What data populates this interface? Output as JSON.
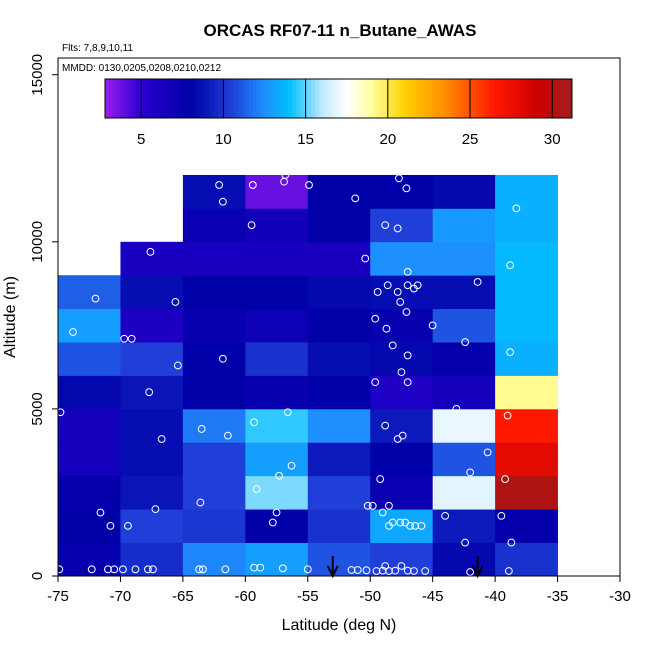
{
  "chart_data": {
    "type": "heatmap",
    "title": "ORCAS RF07-11 n_Butane_AWAS",
    "subtitle_flights": "Flts: 7,8,9,10,11",
    "subtitle_dates": "MMDD: 0130,0205,0208,0210,0212",
    "xlabel": "Latitude (deg N)",
    "ylabel": "Altitude (m)",
    "xlim": [
      -75,
      -30
    ],
    "ylim": [
      0,
      15500
    ],
    "xticks": [
      -75,
      -70,
      -65,
      -60,
      -55,
      -50,
      -45,
      -40,
      -35,
      -30
    ],
    "yticks": [
      0,
      5000,
      10000,
      15000
    ],
    "colorbar": {
      "min": 2.8,
      "max": 31.2,
      "ticks": [
        5,
        10,
        15,
        20,
        25,
        30
      ],
      "stops": [
        {
          "v": 2.8,
          "c": "#9a1ff0"
        },
        {
          "v": 5,
          "c": "#2a00d0"
        },
        {
          "v": 8,
          "c": "#0000a8"
        },
        {
          "v": 10.5,
          "c": "#1f3fd8"
        },
        {
          "v": 12.5,
          "c": "#1e8fff"
        },
        {
          "v": 14,
          "c": "#00bfff"
        },
        {
          "v": 16,
          "c": "#bfe8ff"
        },
        {
          "v": 17.5,
          "c": "#ffffff"
        },
        {
          "v": 19,
          "c": "#ffffa0"
        },
        {
          "v": 21,
          "c": "#ffd200"
        },
        {
          "v": 23.5,
          "c": "#ff8c00"
        },
        {
          "v": 26.5,
          "c": "#ff1800"
        },
        {
          "v": 29,
          "c": "#d00000"
        },
        {
          "v": 31.2,
          "c": "#a01e1e"
        }
      ]
    },
    "lat_bins": [
      -75,
      -70,
      -65,
      -60,
      -55,
      -50,
      -45,
      -40,
      -35
    ],
    "alt_bins": [
      0,
      1000,
      2000,
      3000,
      4000,
      5000,
      6000,
      7000,
      8000,
      9000,
      10000,
      11000,
      12000
    ],
    "cells": [
      [
        7.5,
        9.8,
        12.3,
        13.0,
        11.0,
        10.5,
        8.3,
        10.0
      ],
      [
        8.0,
        10.5,
        10.2,
        8.0,
        10.0,
        13.3,
        9.0,
        7.8
      ],
      [
        7.8,
        8.8,
        10.5,
        15.3,
        10.5,
        7.3,
        16.8,
        30.5
      ],
      [
        6.5,
        8.5,
        10.5,
        13.0,
        9.0,
        8.0,
        11.0,
        28.0
      ],
      [
        6.5,
        8.5,
        12.0,
        14.5,
        12.5,
        9.0,
        17.0,
        26.5
      ],
      [
        8.3,
        8.8,
        8.0,
        7.5,
        8.0,
        5.8,
        6.5,
        19.2
      ],
      [
        11.0,
        10.5,
        8.0,
        10.0,
        8.5,
        8.3,
        7.8,
        13.5
      ],
      [
        13.0,
        6.0,
        7.5,
        7.0,
        8.0,
        7.5,
        11.0,
        13.8
      ],
      [
        11.3,
        8.5,
        8.0,
        8.0,
        8.3,
        8.5,
        8.5,
        13.8
      ],
      [
        null,
        6.2,
        6.2,
        6.2,
        6.2,
        12.5,
        12.5,
        13.8
      ],
      [
        null,
        null,
        7.3,
        6.8,
        8.0,
        10.5,
        12.8,
        13.5
      ],
      [
        null,
        null,
        8.5,
        3.8,
        8.0,
        8.0,
        8.3,
        13.5
      ]
    ],
    "samples": [
      [
        -74.9,
        200
      ],
      [
        -72.3,
        200
      ],
      [
        -71.0,
        200
      ],
      [
        -70.5,
        200
      ],
      [
        -69.8,
        200
      ],
      [
        -68.8,
        200
      ],
      [
        -67.8,
        200
      ],
      [
        -67.4,
        200
      ],
      [
        -63.7,
        200
      ],
      [
        -63.4,
        200
      ],
      [
        -61.6,
        200
      ],
      [
        -59.3,
        250
      ],
      [
        -58.8,
        250
      ],
      [
        -57.0,
        230
      ],
      [
        -55.0,
        200
      ],
      [
        -51.5,
        180
      ],
      [
        -51.0,
        180
      ],
      [
        -50.3,
        170
      ],
      [
        -49.5,
        150
      ],
      [
        -49.0,
        160
      ],
      [
        -48.8,
        300
      ],
      [
        -48.5,
        150
      ],
      [
        -48.0,
        160
      ],
      [
        -47.5,
        300
      ],
      [
        -47.0,
        160
      ],
      [
        -46.5,
        150
      ],
      [
        -45.6,
        150
      ],
      [
        -42.0,
        120
      ],
      [
        -38.9,
        150
      ],
      [
        -71.6,
        1900
      ],
      [
        -70.8,
        1500
      ],
      [
        -69.4,
        1500
      ],
      [
        -67.2,
        2000
      ],
      [
        -63.6,
        2200
      ],
      [
        -57.8,
        1600
      ],
      [
        -57.5,
        1900
      ],
      [
        -50.2,
        2100
      ],
      [
        -49.8,
        2100
      ],
      [
        -49.0,
        1900
      ],
      [
        -48.5,
        1500
      ],
      [
        -48.2,
        1600
      ],
      [
        -47.6,
        1600
      ],
      [
        -47.2,
        1600
      ],
      [
        -46.8,
        1500
      ],
      [
        -46.4,
        1500
      ],
      [
        -45.9,
        1500
      ],
      [
        -44.0,
        1800
      ],
      [
        -42.4,
        1000
      ],
      [
        -39.5,
        1800
      ],
      [
        -38.7,
        1000
      ],
      [
        -59.1,
        2600
      ],
      [
        -57.3,
        3000
      ],
      [
        -56.3,
        3300
      ],
      [
        -49.2,
        2900
      ],
      [
        -48.5,
        2100
      ],
      [
        -42.0,
        3100
      ],
      [
        -40.6,
        3700
      ],
      [
        -39.2,
        2900
      ],
      [
        -66.7,
        4100
      ],
      [
        -63.5,
        4400
      ],
      [
        -61.4,
        4200
      ],
      [
        -59.3,
        4600
      ],
      [
        -56.6,
        4900
      ],
      [
        -48.8,
        4500
      ],
      [
        -47.8,
        4100
      ],
      [
        -47.4,
        4200
      ],
      [
        -74.8,
        4900
      ],
      [
        -67.7,
        5500
      ],
      [
        -49.6,
        5800
      ],
      [
        -47.5,
        6100
      ],
      [
        -47.0,
        5800
      ],
      [
        -43.1,
        5000
      ],
      [
        -39.0,
        4800
      ],
      [
        -73.8,
        7300
      ],
      [
        -69.7,
        7100
      ],
      [
        -69.1,
        7100
      ],
      [
        -65.4,
        6300
      ],
      [
        -61.8,
        6500
      ],
      [
        -49.6,
        7700
      ],
      [
        -48.7,
        7400
      ],
      [
        -48.2,
        6900
      ],
      [
        -47.0,
        6600
      ],
      [
        -45.0,
        7500
      ],
      [
        -42.4,
        7000
      ],
      [
        -38.8,
        6700
      ],
      [
        -72.0,
        8300
      ],
      [
        -65.6,
        8200
      ],
      [
        -49.4,
        8500
      ],
      [
        -48.6,
        8700
      ],
      [
        -47.8,
        8500
      ],
      [
        -47.6,
        8200
      ],
      [
        -47.0,
        8700
      ],
      [
        -46.5,
        8600
      ],
      [
        -46.2,
        8700
      ],
      [
        -47.1,
        7900
      ],
      [
        -41.4,
        8800
      ],
      [
        -38.8,
        9300
      ],
      [
        -67.6,
        9700
      ],
      [
        -50.4,
        9500
      ],
      [
        -47.0,
        9100
      ],
      [
        -59.5,
        10500
      ],
      [
        -47.8,
        10400
      ],
      [
        -48.8,
        10500
      ],
      [
        -38.3,
        11000
      ],
      [
        -51.2,
        11300
      ],
      [
        -62.1,
        11700
      ],
      [
        -61.8,
        11200
      ],
      [
        -59.4,
        11700
      ],
      [
        -56.9,
        11800
      ],
      [
        -56.8,
        12000
      ],
      [
        -54.9,
        11700
      ],
      [
        -47.7,
        11900
      ],
      [
        -47.1,
        11600
      ]
    ],
    "arrows": [
      -53.0,
      -41.4
    ]
  }
}
